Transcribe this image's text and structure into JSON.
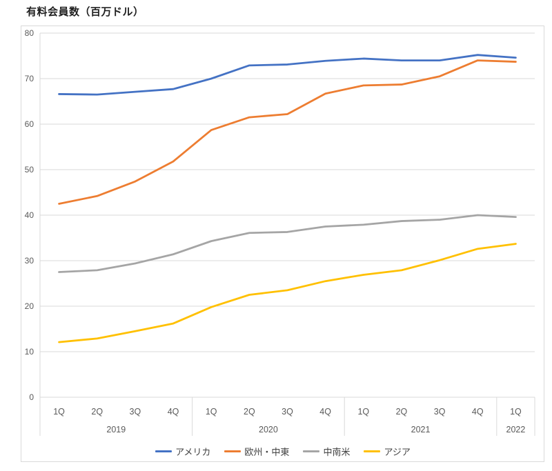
{
  "title": "有料会員数（百万ドル）",
  "colors": {
    "grid": "#d9d9d9",
    "frame_border": "#d9d9d9",
    "axis_text": "#595959",
    "legend_text": "#404040",
    "title_text": "#1f1f1f",
    "background": "#ffffff"
  },
  "chart_data": {
    "type": "line",
    "title": "有料会員数（百万ドル）",
    "xlabel": "",
    "ylabel": "",
    "ylim": [
      0,
      80
    ],
    "yticks": [
      0,
      10,
      20,
      30,
      40,
      50,
      60,
      70,
      80
    ],
    "grid": "horizontal",
    "legend_position": "bottom",
    "x": [
      "1Q",
      "2Q",
      "3Q",
      "4Q",
      "1Q",
      "2Q",
      "3Q",
      "4Q",
      "1Q",
      "2Q",
      "3Q",
      "4Q",
      "1Q"
    ],
    "year_groups": [
      {
        "label": "2019",
        "count": 4
      },
      {
        "label": "2020",
        "count": 4
      },
      {
        "label": "2021",
        "count": 4
      },
      {
        "label": "2022",
        "count": 1
      }
    ],
    "series": [
      {
        "key": "america",
        "name": "アメリカ",
        "color": "#4472c4",
        "values": [
          66.6,
          66.5,
          67.1,
          67.7,
          70.0,
          72.9,
          73.1,
          73.9,
          74.4,
          74.0,
          74.0,
          75.2,
          74.6
        ]
      },
      {
        "key": "emea",
        "name": "欧州・中東",
        "color": "#ed7d31",
        "values": [
          42.5,
          44.2,
          47.4,
          51.8,
          58.7,
          61.5,
          62.2,
          66.7,
          68.5,
          68.7,
          70.5,
          74.0,
          73.7
        ]
      },
      {
        "key": "latam",
        "name": "中南米",
        "color": "#a5a5a5",
        "values": [
          27.5,
          27.9,
          29.4,
          31.4,
          34.3,
          36.1,
          36.3,
          37.5,
          37.9,
          38.7,
          39.0,
          40.0,
          39.6
        ]
      },
      {
        "key": "apac",
        "name": "アジア",
        "color": "#ffc000",
        "values": [
          12.1,
          12.9,
          14.5,
          16.2,
          19.8,
          22.5,
          23.5,
          25.5,
          26.9,
          27.9,
          30.1,
          32.6,
          33.7
        ]
      }
    ]
  }
}
